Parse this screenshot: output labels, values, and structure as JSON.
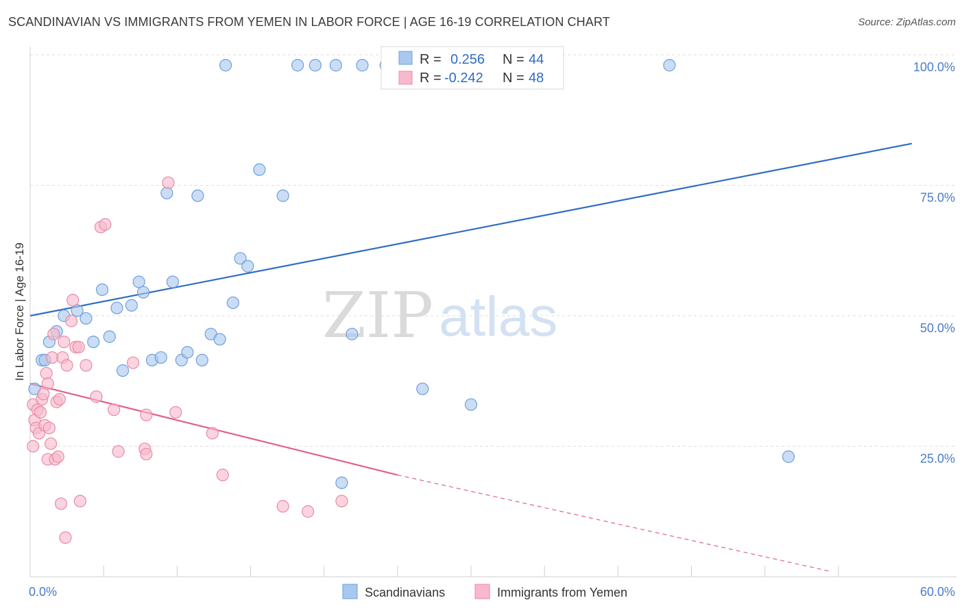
{
  "title": "SCANDINAVIAN VS IMMIGRANTS FROM YEMEN IN LABOR FORCE | AGE 16-19 CORRELATION CHART",
  "source": "Source: ZipAtlas.com",
  "watermark": {
    "zip": "ZIP",
    "atlas": "atlas"
  },
  "colors": {
    "blue_fill": "#a9c8ef",
    "blue_stroke": "#6d9fdc",
    "blue_line": "#2f6cc4",
    "pink_fill": "#f7b9cb",
    "pink_stroke": "#e98aa6",
    "pink_line": "#e0608c",
    "accent_text": "#4a7bc8"
  },
  "stats_box": {
    "rows": [
      {
        "r_label": "R =",
        "r_value": "0.256",
        "n_label": "N =",
        "n_value": "44"
      },
      {
        "r_label": "R =",
        "r_value": "-0.242",
        "n_label": "N =",
        "n_value": "48"
      }
    ]
  },
  "chart_data": {
    "type": "scatter",
    "title": "SCANDINAVIAN VS IMMIGRANTS FROM YEMEN IN LABOR FORCE | AGE 16-19 CORRELATION CHART",
    "xlabel": "",
    "ylabel": "In Labor Force | Age 16-19",
    "xlim": [
      0,
      60
    ],
    "ylim": [
      0,
      100
    ],
    "x_tick_labels": [
      {
        "value": 0,
        "label": "0.0%"
      },
      {
        "value": 60,
        "label": "60.0%"
      }
    ],
    "y_tick_labels": [
      {
        "value": 25,
        "label": "25.0%"
      },
      {
        "value": 50,
        "label": "50.0%"
      },
      {
        "value": 75,
        "label": "75.0%"
      },
      {
        "value": 100,
        "label": "100.0%"
      }
    ],
    "grid": true,
    "legend_position": "bottom-center",
    "series": [
      {
        "name": "Scandinavians",
        "color": "#a9c8ef",
        "trend": {
          "x": [
            0,
            60
          ],
          "y": [
            50,
            83
          ],
          "dashed_from": null
        },
        "points": [
          {
            "x": 0.3,
            "y": 36
          },
          {
            "x": 0.8,
            "y": 41.5
          },
          {
            "x": 1.3,
            "y": 45
          },
          {
            "x": 1.8,
            "y": 47
          },
          {
            "x": 2.3,
            "y": 50
          },
          {
            "x": 3.2,
            "y": 51
          },
          {
            "x": 3.8,
            "y": 49.5
          },
          {
            "x": 4.3,
            "y": 45
          },
          {
            "x": 4.9,
            "y": 55
          },
          {
            "x": 5.4,
            "y": 46
          },
          {
            "x": 5.9,
            "y": 51.5
          },
          {
            "x": 6.3,
            "y": 39.5
          },
          {
            "x": 6.9,
            "y": 52
          },
          {
            "x": 7.4,
            "y": 56.5
          },
          {
            "x": 7.7,
            "y": 54.5
          },
          {
            "x": 8.3,
            "y": 41.5
          },
          {
            "x": 8.9,
            "y": 42
          },
          {
            "x": 9.3,
            "y": 73.5
          },
          {
            "x": 9.7,
            "y": 56.5
          },
          {
            "x": 10.3,
            "y": 41.5
          },
          {
            "x": 10.7,
            "y": 43
          },
          {
            "x": 11.4,
            "y": 73
          },
          {
            "x": 11.7,
            "y": 41.5
          },
          {
            "x": 12.3,
            "y": 46.5
          },
          {
            "x": 12.9,
            "y": 45.5
          },
          {
            "x": 13.3,
            "y": 98
          },
          {
            "x": 13.8,
            "y": 52.5
          },
          {
            "x": 14.3,
            "y": 61
          },
          {
            "x": 14.8,
            "y": 59.5
          },
          {
            "x": 15.6,
            "y": 78
          },
          {
            "x": 17.2,
            "y": 73
          },
          {
            "x": 18.2,
            "y": 98
          },
          {
            "x": 19.4,
            "y": 98
          },
          {
            "x": 20.8,
            "y": 98
          },
          {
            "x": 22.6,
            "y": 98
          },
          {
            "x": 24.2,
            "y": 98
          },
          {
            "x": 25.4,
            "y": 98
          },
          {
            "x": 21.9,
            "y": 46.5
          },
          {
            "x": 26.7,
            "y": 36
          },
          {
            "x": 30,
            "y": 33
          },
          {
            "x": 43.5,
            "y": 98
          },
          {
            "x": 51.6,
            "y": 23
          },
          {
            "x": 21.2,
            "y": 18
          },
          {
            "x": 1,
            "y": 41.5
          }
        ]
      },
      {
        "name": "Immigrants from Yemen",
        "color": "#f7b9cb",
        "trend": {
          "x": [
            0,
            25,
            54.5
          ],
          "y": [
            37,
            19.5,
            1
          ],
          "dashed_from": 25
        },
        "points": [
          {
            "x": 0.2,
            "y": 33
          },
          {
            "x": 0.2,
            "y": 25
          },
          {
            "x": 0.3,
            "y": 30
          },
          {
            "x": 0.4,
            "y": 28.5
          },
          {
            "x": 0.5,
            "y": 32
          },
          {
            "x": 0.6,
            "y": 27.5
          },
          {
            "x": 0.7,
            "y": 31.5
          },
          {
            "x": 0.8,
            "y": 34
          },
          {
            "x": 0.9,
            "y": 35
          },
          {
            "x": 1.0,
            "y": 29
          },
          {
            "x": 1.1,
            "y": 39
          },
          {
            "x": 1.2,
            "y": 37
          },
          {
            "x": 1.2,
            "y": 22.5
          },
          {
            "x": 1.3,
            "y": 28.5
          },
          {
            "x": 1.4,
            "y": 25.5
          },
          {
            "x": 1.5,
            "y": 42
          },
          {
            "x": 1.6,
            "y": 46.5
          },
          {
            "x": 1.7,
            "y": 22.5
          },
          {
            "x": 1.8,
            "y": 33.5
          },
          {
            "x": 1.9,
            "y": 23
          },
          {
            "x": 2.0,
            "y": 34
          },
          {
            "x": 2.1,
            "y": 14
          },
          {
            "x": 2.2,
            "y": 42
          },
          {
            "x": 2.3,
            "y": 45
          },
          {
            "x": 2.4,
            "y": 7.5
          },
          {
            "x": 2.5,
            "y": 40.5
          },
          {
            "x": 2.8,
            "y": 49
          },
          {
            "x": 2.9,
            "y": 53
          },
          {
            "x": 3.1,
            "y": 44
          },
          {
            "x": 3.3,
            "y": 44
          },
          {
            "x": 3.4,
            "y": 14.5
          },
          {
            "x": 3.8,
            "y": 40.5
          },
          {
            "x": 4.5,
            "y": 34.5
          },
          {
            "x": 4.8,
            "y": 67
          },
          {
            "x": 5.1,
            "y": 67.5
          },
          {
            "x": 5.7,
            "y": 32
          },
          {
            "x": 6.0,
            "y": 24
          },
          {
            "x": 7.0,
            "y": 41
          },
          {
            "x": 7.8,
            "y": 24.5
          },
          {
            "x": 7.9,
            "y": 23.5
          },
          {
            "x": 7.9,
            "y": 31
          },
          {
            "x": 9.4,
            "y": 75.5
          },
          {
            "x": 9.9,
            "y": 31.5
          },
          {
            "x": 12.4,
            "y": 27.5
          },
          {
            "x": 13.1,
            "y": 19.5
          },
          {
            "x": 17.2,
            "y": 13.5
          },
          {
            "x": 18.9,
            "y": 12.5
          },
          {
            "x": 21.2,
            "y": 14.5
          }
        ]
      }
    ]
  }
}
